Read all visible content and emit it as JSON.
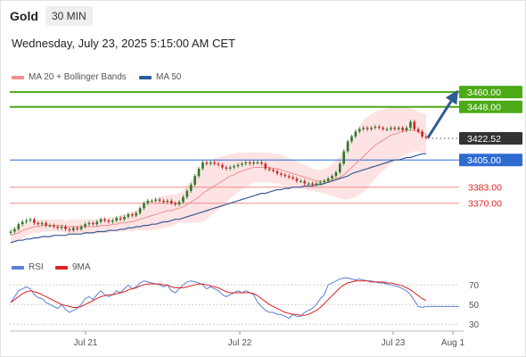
{
  "header": {
    "symbol": "Gold",
    "timeframe": "30 MIN",
    "datetime": "Wednesday, July 23, 2025 5:15:00 AM CET"
  },
  "legend": {
    "ma_bb": {
      "label": "MA 20 + Bollinger Bands",
      "color": "#f08f8f"
    },
    "ma50": {
      "label": "MA 50",
      "color": "#2f5d9e"
    },
    "rsi": {
      "label": "RSI",
      "color": "#5b7fd6"
    },
    "rsi_ma": {
      "label": "9MA",
      "color": "#e02020"
    }
  },
  "levels": [
    {
      "label": "3460.00",
      "value": 3460.0,
      "style": "green-box"
    },
    {
      "label": "3448.00",
      "value": 3448.0,
      "style": "green-box"
    },
    {
      "label": "3422.52",
      "value": 3422.52,
      "style": "dark-box"
    },
    {
      "label": "3405.00",
      "value": 3405.0,
      "style": "blue-box"
    },
    {
      "label": "3383.00",
      "value": 3383.0,
      "style": "red-text"
    },
    {
      "label": "3370.00",
      "value": 3370.0,
      "style": "red-text"
    }
  ],
  "rsi_ticks": [
    "70",
    "50",
    "30"
  ],
  "x_ticks": [
    "Jul 21",
    "Jul 22",
    "Jul 23",
    "Aug 1"
  ],
  "chart_data": {
    "type": "candlestick",
    "title": "Gold",
    "timeframe": "30 MIN",
    "price_ylim": [
      3338,
      3468
    ],
    "rsi_ylim": [
      22,
      82
    ],
    "close": [
      3347,
      3349,
      3353,
      3355,
      3356,
      3357,
      3354,
      3353,
      3354,
      3352,
      3352,
      3351,
      3350,
      3351,
      3349,
      3348,
      3350,
      3349,
      3351,
      3353,
      3354,
      3353,
      3355,
      3357,
      3356,
      3355,
      3356,
      3358,
      3357,
      3359,
      3361,
      3360,
      3362,
      3366,
      3370,
      3372,
      3372,
      3373,
      3372,
      3371,
      3372,
      3370,
      3369,
      3371,
      3375,
      3380,
      3385,
      3392,
      3398,
      3403,
      3402,
      3403,
      3402,
      3401,
      3399,
      3398,
      3399,
      3400,
      3401,
      3402,
      3403,
      3402,
      3403,
      3403,
      3402,
      3398,
      3397,
      3396,
      3394,
      3393,
      3392,
      3391,
      3390,
      3388,
      3388,
      3386,
      3386,
      3385,
      3386,
      3387,
      3388,
      3390,
      3392,
      3395,
      3402,
      3412,
      3420,
      3424,
      3428,
      3430,
      3431,
      3430,
      3431,
      3432,
      3431,
      3430,
      3430,
      3431,
      3430,
      3431,
      3429,
      3431,
      3436,
      3430,
      3428,
      3424,
      3423
    ],
    "ma20": [
      3344,
      3345,
      3346,
      3348,
      3349,
      3350,
      3351,
      3351,
      3352,
      3352,
      3352,
      3352,
      3352,
      3352,
      3351,
      3351,
      3351,
      3351,
      3351,
      3351,
      3351,
      3351,
      3351,
      3352,
      3352,
      3352,
      3353,
      3353,
      3354,
      3354,
      3355,
      3355,
      3356,
      3357,
      3358,
      3359,
      3360,
      3361,
      3362,
      3363,
      3364,
      3364,
      3365,
      3366,
      3367,
      3369,
      3371,
      3373,
      3375,
      3378,
      3380,
      3382,
      3384,
      3386,
      3388,
      3390,
      3392,
      3393,
      3395,
      3396,
      3397,
      3398,
      3399,
      3399,
      3399,
      3399,
      3399,
      3398,
      3398,
      3397,
      3396,
      3395,
      3394,
      3393,
      3392,
      3391,
      3390,
      3389,
      3388,
      3388,
      3388,
      3388,
      3389,
      3390,
      3391,
      3393,
      3396,
      3399,
      3402,
      3405,
      3408,
      3411,
      3414,
      3417,
      3419,
      3421,
      3423,
      3425,
      3426,
      3427,
      3428,
      3429,
      3429,
      3429,
      3428,
      3427,
      3426
    ],
    "ma50": [
      3338,
      3339,
      3340,
      3340,
      3341,
      3341,
      3342,
      3342,
      3343,
      3343,
      3343,
      3344,
      3344,
      3344,
      3344,
      3345,
      3345,
      3345,
      3345,
      3346,
      3346,
      3346,
      3347,
      3347,
      3347,
      3348,
      3348,
      3348,
      3349,
      3349,
      3350,
      3350,
      3351,
      3351,
      3352,
      3352,
      3353,
      3353,
      3354,
      3355,
      3355,
      3356,
      3357,
      3357,
      3358,
      3359,
      3360,
      3361,
      3362,
      3363,
      3364,
      3365,
      3366,
      3367,
      3368,
      3369,
      3370,
      3371,
      3372,
      3373,
      3374,
      3375,
      3376,
      3377,
      3378,
      3378,
      3379,
      3380,
      3381,
      3381,
      3382,
      3382,
      3383,
      3383,
      3383,
      3384,
      3384,
      3384,
      3385,
      3385,
      3386,
      3387,
      3388,
      3389,
      3390,
      3391,
      3392,
      3394,
      3395,
      3396,
      3397,
      3398,
      3399,
      3400,
      3401,
      3402,
      3403,
      3404,
      3405,
      3405,
      3406,
      3407,
      3407,
      3408,
      3409,
      3410,
      3410
    ],
    "bb_width": [
      6,
      6,
      6,
      6,
      6,
      5,
      5,
      5,
      5,
      5,
      5,
      5,
      5,
      5,
      5,
      6,
      6,
      6,
      6,
      6,
      6,
      6,
      6,
      6,
      6,
      6,
      6,
      6,
      7,
      7,
      7,
      8,
      8,
      9,
      10,
      11,
      12,
      12,
      13,
      13,
      13,
      13,
      12,
      12,
      13,
      15,
      17,
      19,
      21,
      23,
      23,
      22,
      22,
      21,
      20,
      19,
      18,
      17,
      16,
      15,
      14,
      13,
      12,
      12,
      12,
      12,
      12,
      12,
      12,
      12,
      12,
      11,
      11,
      11,
      10,
      10,
      10,
      9,
      9,
      9,
      10,
      11,
      13,
      15,
      17,
      20,
      23,
      25,
      27,
      28,
      29,
      29,
      28,
      27,
      26,
      25,
      24,
      23,
      22,
      21,
      20,
      19,
      18,
      17,
      16,
      16,
      16
    ],
    "rsi": [
      52,
      58,
      64,
      66,
      68,
      66,
      60,
      57,
      56,
      52,
      50,
      48,
      46,
      50,
      45,
      42,
      44,
      46,
      50,
      56,
      58,
      55,
      60,
      64,
      60,
      58,
      60,
      64,
      62,
      66,
      70,
      66,
      68,
      72,
      74,
      73,
      72,
      71,
      70,
      68,
      70,
      64,
      62,
      66,
      70,
      73,
      74,
      73,
      72,
      70,
      66,
      68,
      66,
      64,
      60,
      58,
      60,
      62,
      64,
      62,
      64,
      62,
      60,
      52,
      48,
      44,
      42,
      42,
      40,
      40,
      38,
      36,
      40,
      38,
      38,
      42,
      44,
      46,
      50,
      56,
      60,
      70,
      72,
      74,
      76,
      77,
      77,
      76,
      75,
      76,
      75,
      74,
      74,
      73,
      72,
      72,
      71,
      70,
      69,
      68,
      66,
      64,
      60,
      54,
      48,
      47,
      48
    ],
    "rsi_ma": [
      52,
      55,
      58,
      61,
      63,
      64,
      63,
      62,
      60,
      58,
      56,
      54,
      52,
      50,
      49,
      48,
      47,
      47,
      48,
      50,
      52,
      54,
      56,
      58,
      59,
      60,
      60,
      61,
      62,
      63,
      65,
      66,
      67,
      69,
      70,
      71,
      71,
      71,
      71,
      70,
      70,
      68,
      67,
      67,
      67,
      68,
      69,
      70,
      71,
      71,
      70,
      69,
      68,
      67,
      65,
      63,
      62,
      62,
      62,
      62,
      62,
      62,
      61,
      59,
      56,
      53,
      50,
      48,
      46,
      44,
      42,
      41,
      40,
      40,
      39,
      39,
      40,
      42,
      44,
      47,
      51,
      55,
      59,
      63,
      67,
      70,
      72,
      73,
      74,
      74,
      74,
      74,
      73,
      73,
      73,
      73,
      72,
      72,
      71,
      70,
      69,
      67,
      65,
      62,
      59,
      56,
      54
    ]
  }
}
